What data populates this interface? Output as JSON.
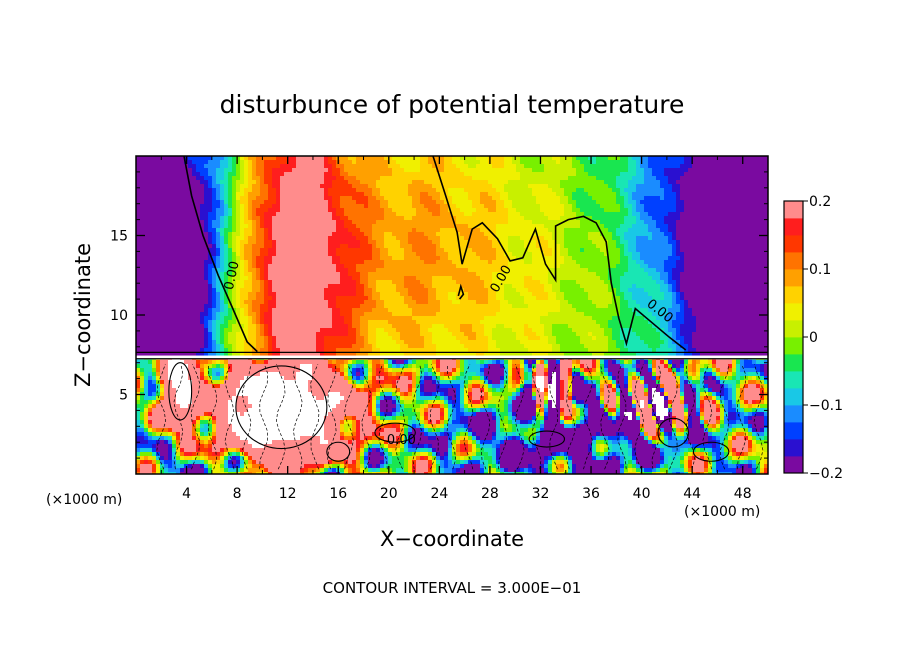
{
  "chart_data": {
    "type": "heatmap",
    "title": "disturbunce of potential temperature",
    "xlabel": "X−coordinate",
    "ylabel": "Z−coordinate",
    "x_unit": "(×1000 m)",
    "x_unit_right": "(×1000 m)",
    "xlim": [
      0,
      50
    ],
    "ylim": [
      0,
      20
    ],
    "x_ticks": [
      4,
      8,
      12,
      16,
      20,
      24,
      28,
      32,
      36,
      40,
      44,
      48
    ],
    "x_tick_labels": [
      "4",
      "8",
      "12",
      "16",
      "20",
      "24",
      "28",
      "32",
      "36",
      "40",
      "44",
      "48"
    ],
    "y_ticks": [
      5,
      10,
      15
    ],
    "y_tick_labels": [
      "5",
      "10",
      "15"
    ],
    "colorbar": {
      "min": -0.2,
      "max": 0.2,
      "ticks": [
        0.2,
        0.1,
        0,
        -0.1,
        -0.2
      ],
      "tick_labels": [
        "0.2",
        "0.1",
        "0",
        "−0.1",
        "−0.2"
      ],
      "colors": [
        "#7a0aa0",
        "#2a10d0",
        "#0040ff",
        "#1a8cff",
        "#19c8e6",
        "#19e6b4",
        "#19e650",
        "#78f000",
        "#c8f000",
        "#f0f000",
        "#ffd200",
        "#ffa000",
        "#ff7300",
        "#ff3700",
        "#ff1e1e",
        "#ff8c8c"
      ]
    },
    "contour_labels": [
      "0.00",
      "0.00",
      "0.00",
      "0.00"
    ],
    "footer": "CONTOUR INTERVAL = 3.000E−01"
  }
}
